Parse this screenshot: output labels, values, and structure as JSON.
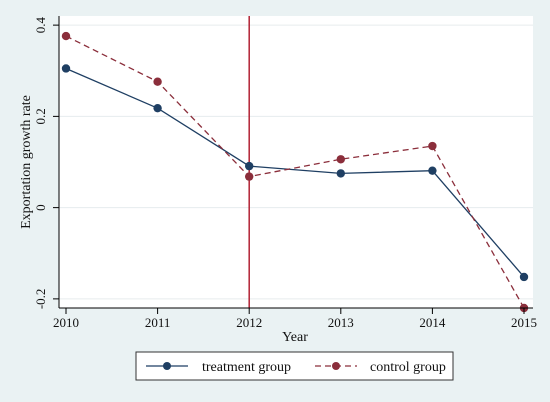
{
  "chart_data": {
    "type": "line",
    "title": "",
    "xlabel": "Year",
    "ylabel": "Exportation growth rate",
    "x": [
      2010,
      2011,
      2012,
      2013,
      2014,
      2015
    ],
    "x_ticks": [
      "2010",
      "2011",
      "2012",
      "2013",
      "2014",
      "2015"
    ],
    "xlim": [
      2010,
      2015
    ],
    "ylim": [
      -0.22,
      0.42
    ],
    "y_ticks": [
      -0.2,
      0,
      0.2,
      0.4
    ],
    "y_tick_labels": [
      "-0.2",
      "0",
      "0.2",
      "0.4"
    ],
    "grid": true,
    "legend_position": "bottom",
    "vertical_line": {
      "x": 2012,
      "color": "#b22234"
    },
    "series": [
      {
        "name": "treatment group",
        "values": [
          0.305,
          0.218,
          0.091,
          0.075,
          0.081,
          -0.152
        ],
        "color": "#1f3f63",
        "line_style": "solid",
        "marker": "circle"
      },
      {
        "name": "control group",
        "values": [
          0.376,
          0.276,
          0.068,
          0.106,
          0.135,
          -0.22
        ],
        "color": "#8b2e3b",
        "line_style": "dashed",
        "marker": "circle"
      }
    ]
  }
}
